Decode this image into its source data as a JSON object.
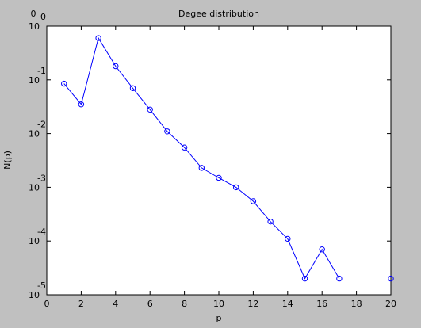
{
  "chart_data": {
    "type": "line",
    "title": "Degee distribution",
    "xlabel": "p",
    "ylabel": "N(p)",
    "corner_label": "0",
    "yscale": "log",
    "xlim": [
      0,
      20
    ],
    "ylim": [
      1e-05,
      1
    ],
    "grid": false,
    "x_ticks": [
      "0",
      "2",
      "4",
      "6",
      "8",
      "10",
      "12",
      "14",
      "16",
      "18",
      "20"
    ],
    "y_ticks": [
      {
        "base": "10",
        "exp": "0",
        "value": 1
      },
      {
        "base": "10",
        "exp": "-1",
        "value": 0.1
      },
      {
        "base": "10",
        "exp": "-2",
        "value": 0.01
      },
      {
        "base": "10",
        "exp": "-3",
        "value": 0.001
      },
      {
        "base": "10",
        "exp": "-4",
        "value": 0.0001
      },
      {
        "base": "10",
        "exp": "-5",
        "value": 1e-05
      }
    ],
    "line_color": "#0000ff",
    "series": [
      {
        "x": [
          1,
          2,
          3,
          4,
          5,
          6,
          7,
          8,
          9,
          10,
          11,
          12,
          13,
          14,
          15,
          16,
          17
        ],
        "y": [
          0.085,
          0.035,
          0.6,
          0.18,
          0.07,
          0.028,
          0.011,
          0.0055,
          0.0023,
          0.0015,
          0.001,
          0.00055,
          0.00023,
          0.00011,
          2e-05,
          7e-05,
          2e-05
        ]
      },
      {
        "x": [
          20
        ],
        "y": [
          2e-05
        ]
      }
    ]
  }
}
